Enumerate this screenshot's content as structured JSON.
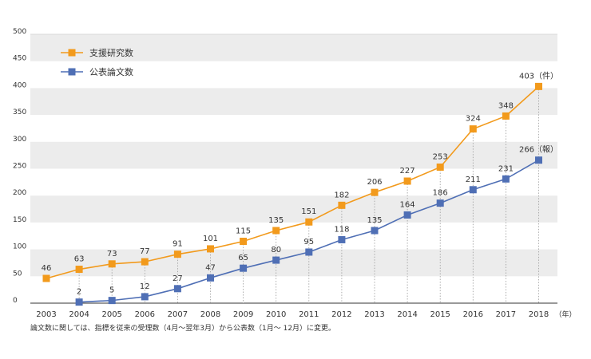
{
  "chart_data": {
    "type": "line",
    "categories": [
      "2003",
      "2004",
      "2005",
      "2006",
      "2007",
      "2008",
      "2009",
      "2010",
      "2011",
      "2012",
      "2013",
      "2014",
      "2015",
      "2016",
      "2017",
      "2018"
    ],
    "ylim": [
      0,
      500
    ],
    "yticks": [
      0,
      50,
      100,
      150,
      200,
      250,
      300,
      350,
      400,
      450,
      500
    ],
    "grid": "alternating horizontal bands",
    "legend_position": "top-left",
    "x_unit_label": "（年）",
    "series": [
      {
        "name": "支援研究数",
        "color": "#f29a1c",
        "marker": "square",
        "values": [
          46,
          63,
          73,
          77,
          91,
          101,
          115,
          135,
          151,
          182,
          206,
          227,
          253,
          324,
          348,
          403
        ],
        "end_unit": "（件）"
      },
      {
        "name": "公表論文数",
        "color": "#4f6fb5",
        "marker": "square",
        "values": [
          null,
          2,
          5,
          12,
          27,
          47,
          65,
          80,
          95,
          118,
          135,
          164,
          186,
          211,
          231,
          266
        ],
        "end_unit": "（報）"
      }
    ]
  },
  "footnote": "論文数に関しては、指標を従来の受理数（4月〜翌年3月）から公表数（1月〜 12月）に変更。"
}
